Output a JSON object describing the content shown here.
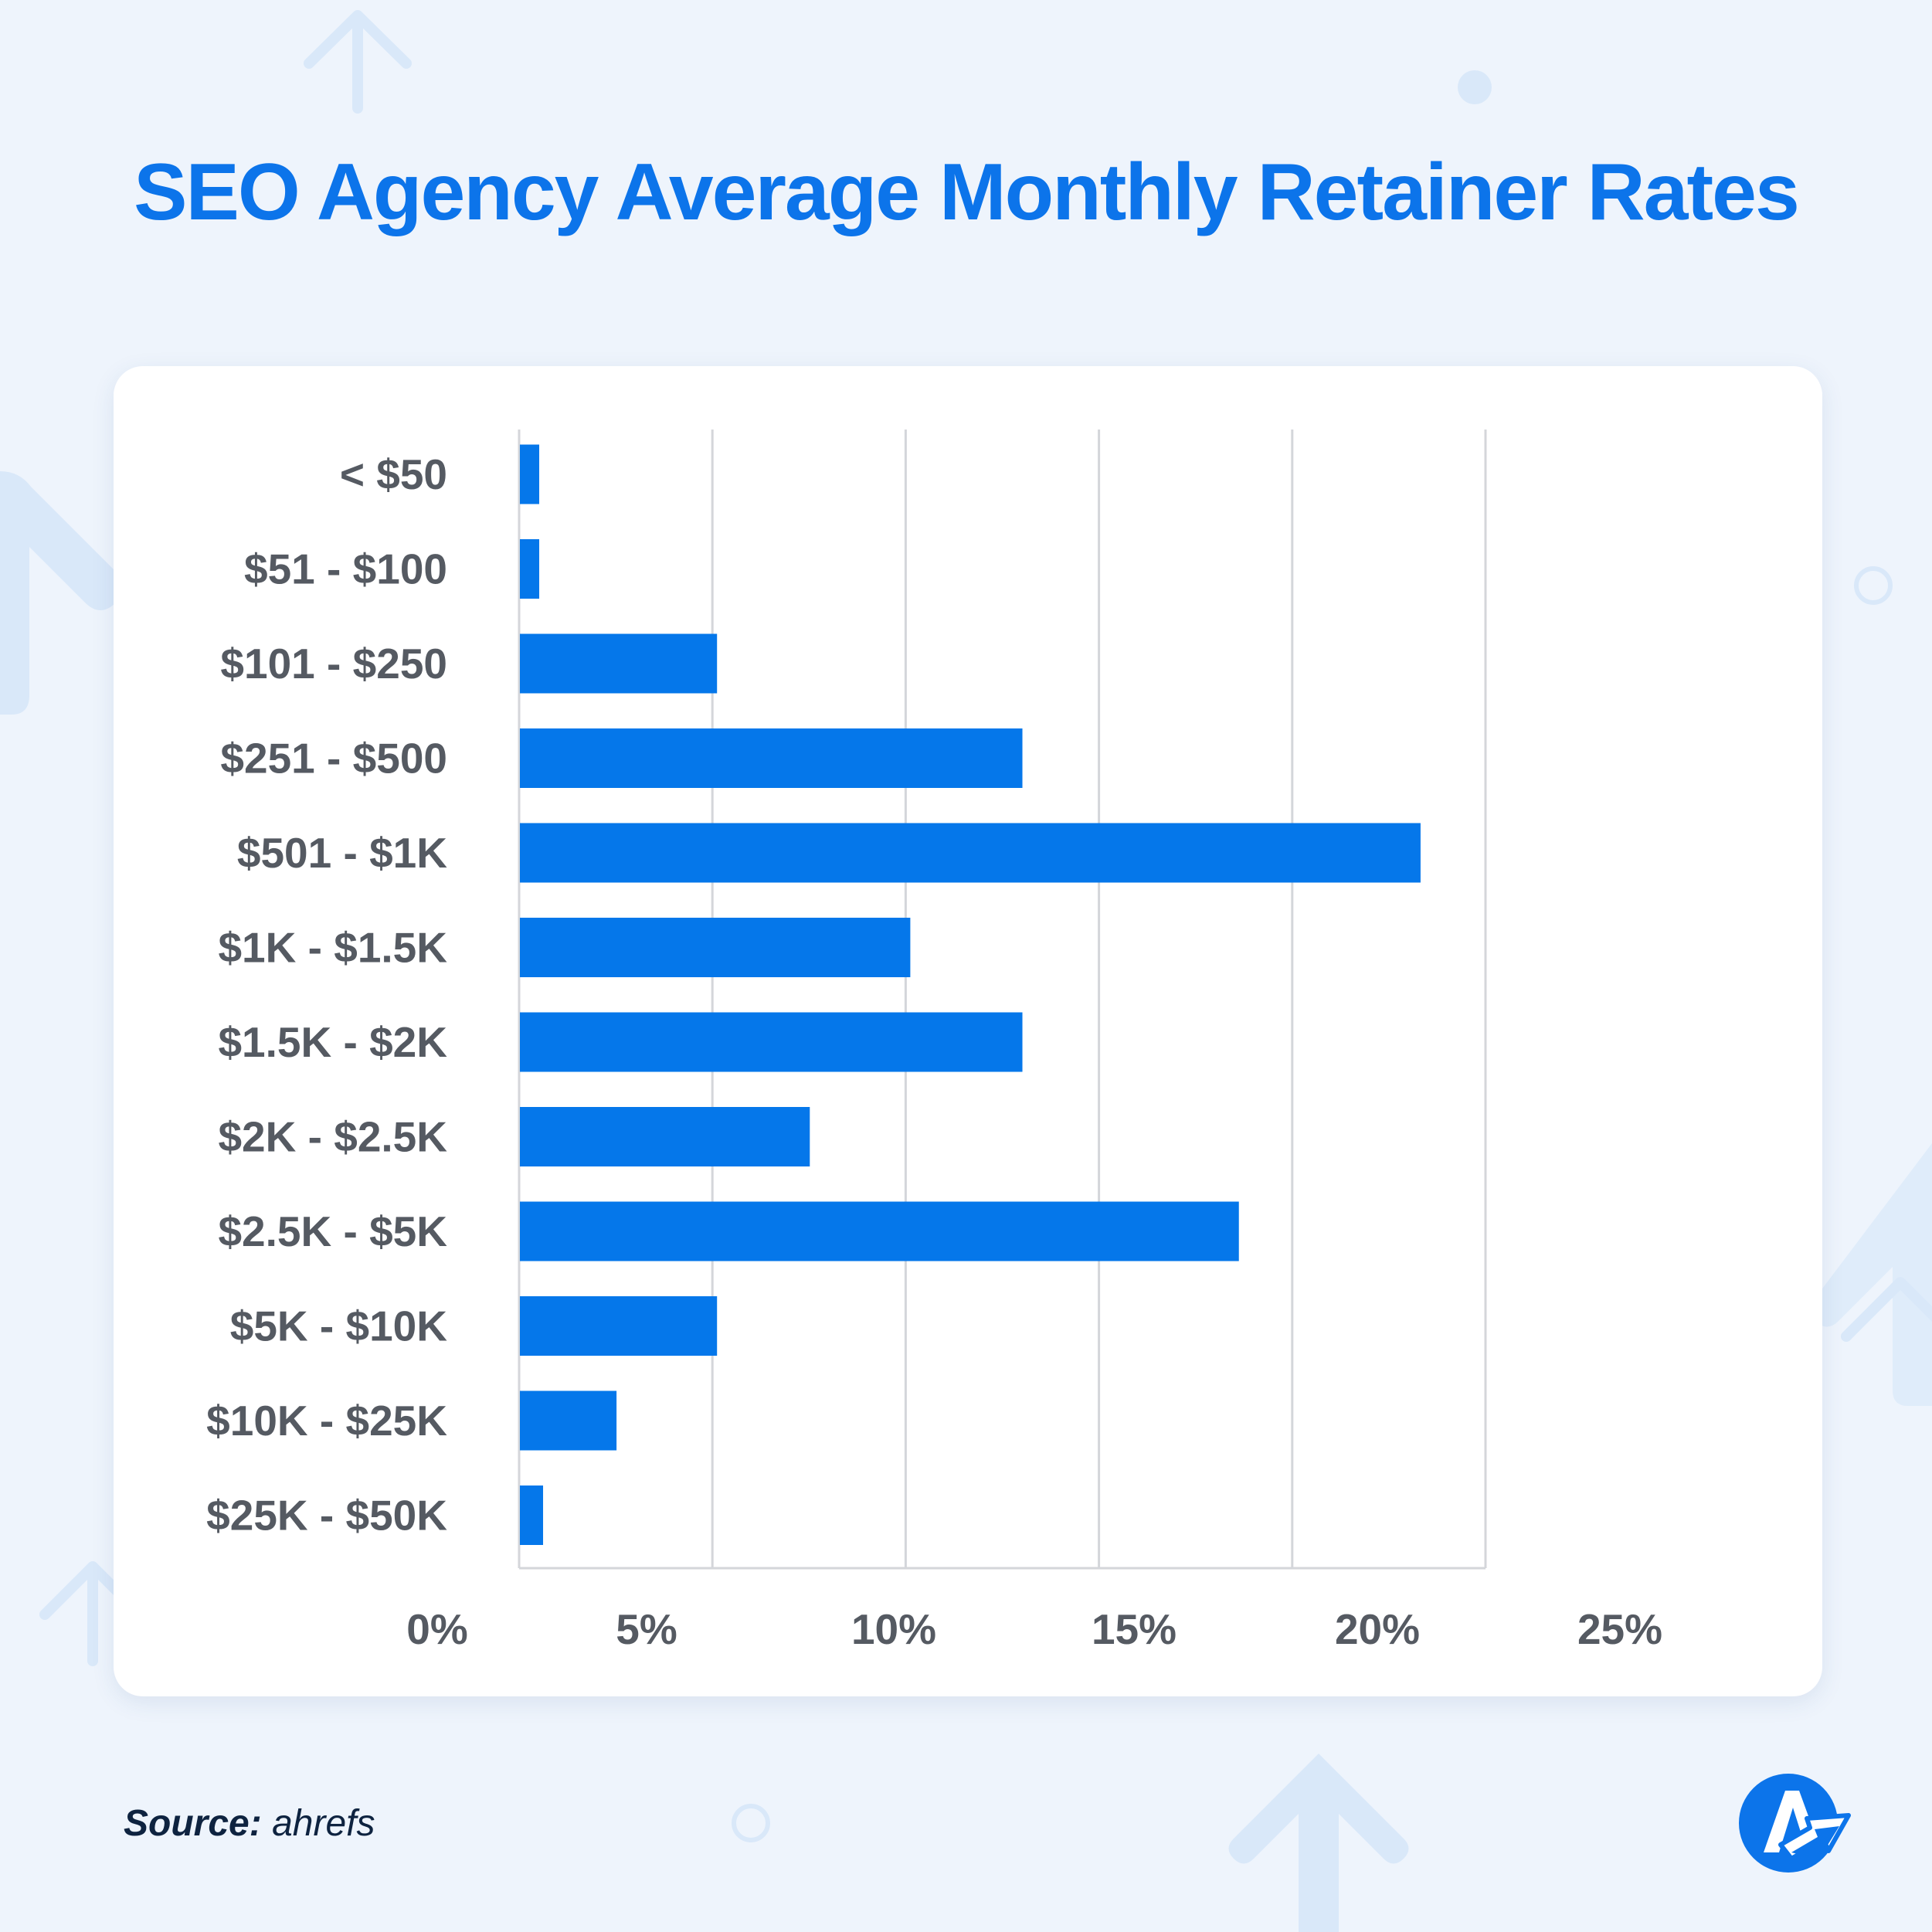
{
  "title": "SEO Agency Average Monthly Retainer Rates",
  "source": {
    "label": "Source:",
    "value": "ahrefs"
  },
  "logo": {
    "icon": "brand-logo-icon",
    "color": "#0c74ea"
  },
  "colors": {
    "bar": "#0577ea",
    "title": "#0c74ea",
    "tick_text": "#555a62",
    "grid": "#d4d6da",
    "background": "#eef4fc",
    "card": "#ffffff"
  },
  "chart_data": {
    "type": "bar",
    "orientation": "horizontal",
    "categories": [
      "< $50",
      "$51 - $100",
      "$101 - $250",
      "$251 - $500",
      "$501 - $1K",
      "$1K - $1.5K",
      "$1.5K - $2K",
      "$2K - $2.5K",
      "$2.5K - $5K",
      "$5K - $10K",
      "$10K - $25K",
      "$25K - $50K"
    ],
    "values": [
      0.5,
      0.5,
      5.1,
      13.0,
      23.3,
      10.1,
      13.0,
      7.5,
      18.6,
      5.1,
      2.5,
      0.6
    ],
    "unit": "%",
    "xlim": [
      0,
      25
    ],
    "xticks": [
      0,
      5,
      10,
      15,
      20,
      25
    ],
    "xtick_labels": [
      "0%",
      "5%",
      "10%",
      "15%",
      "20%",
      "25%"
    ],
    "grid": true,
    "title": "SEO Agency Average Monthly Retainer Rates",
    "xlabel": "",
    "ylabel": ""
  }
}
